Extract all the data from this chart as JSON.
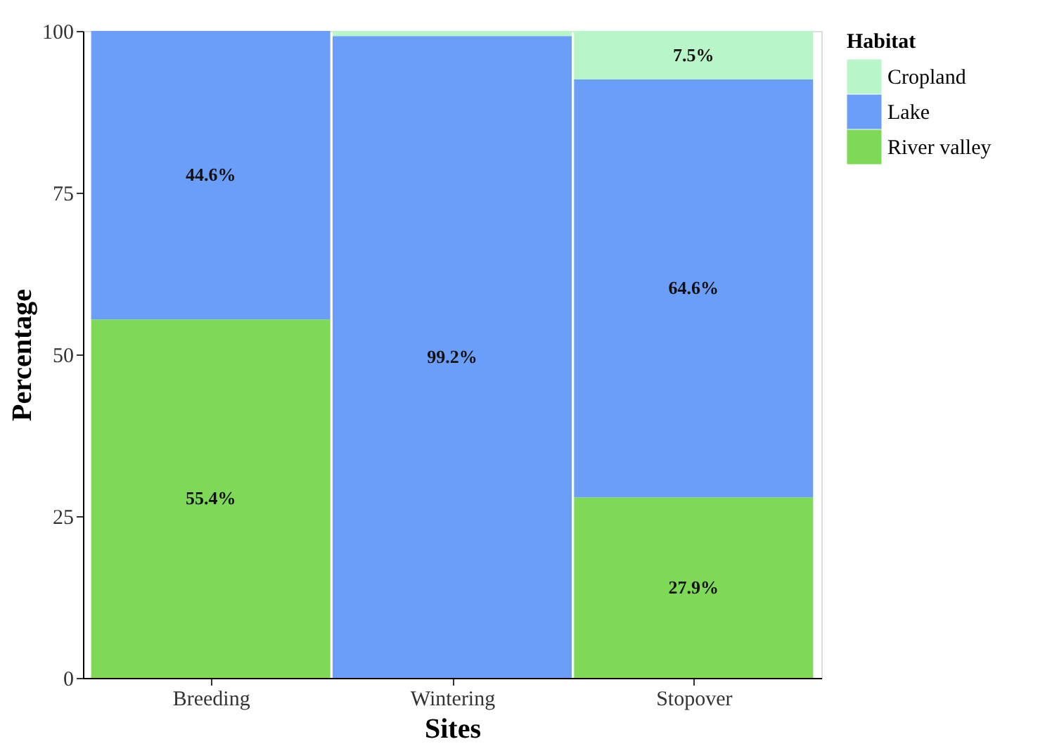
{
  "chart_data": {
    "type": "bar",
    "stacked": true,
    "xlabel": "Sites",
    "ylabel": "Percentage",
    "legend_title": "Habitat",
    "legend": "right",
    "grid": false,
    "categories": [
      "Breeding",
      "Wintering",
      "Stopover"
    ],
    "ylim": [
      0,
      100
    ],
    "yticks": [
      0,
      25,
      50,
      75,
      100
    ],
    "series": [
      {
        "name": "River valley",
        "color": "#7ed957",
        "values": [
          55.4,
          0,
          27.9
        ],
        "value_labels": [
          "55.4%",
          null,
          "27.9%"
        ]
      },
      {
        "name": "Lake",
        "color": "#6a9ef8",
        "values": [
          44.6,
          99.2,
          64.6
        ],
        "value_labels": [
          "44.6%",
          "99.2%",
          "64.6%"
        ]
      },
      {
        "name": "Cropland",
        "color": "#b8f5c8",
        "values": [
          0,
          0.8,
          7.5
        ],
        "value_labels": [
          null,
          null,
          "7.5%"
        ]
      }
    ]
  }
}
